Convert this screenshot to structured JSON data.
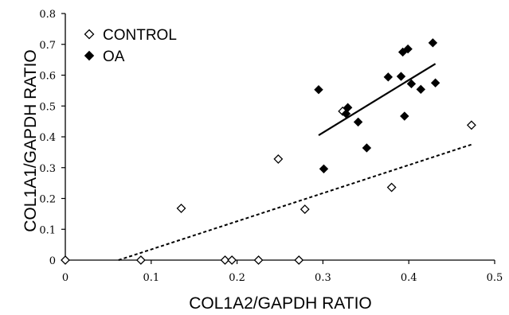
{
  "chart_data": {
    "type": "scatter",
    "xlabel": "COL1A2/GAPDH RATIO",
    "ylabel": "COL1A1/GAPDH RATIO",
    "xlim": [
      0,
      0.5
    ],
    "ylim": [
      0,
      0.8
    ],
    "x_ticks": [
      "0",
      "0.1",
      "0.2",
      "0.3",
      "0.4",
      "0.5"
    ],
    "y_ticks": [
      "0",
      "0.1",
      "0.2",
      "0.3",
      "0.4",
      "0.5",
      "0.6",
      "0.7",
      "0.8"
    ],
    "x_tick_values": [
      0,
      0.1,
      0.2,
      0.3,
      0.4,
      0.5
    ],
    "y_tick_values": [
      0,
      0.1,
      0.2,
      0.3,
      0.4,
      0.5,
      0.6,
      0.7,
      0.8
    ],
    "grid": false,
    "legend_position": "top-left",
    "series": [
      {
        "name": "CONTROL",
        "marker": "open-diamond",
        "color": "#000000",
        "points": [
          [
            0.0,
            0.0
          ],
          [
            0.088,
            0.0
          ],
          [
            0.186,
            0.0
          ],
          [
            0.194,
            0.0
          ],
          [
            0.225,
            0.0
          ],
          [
            0.272,
            0.0
          ],
          [
            0.135,
            0.168
          ],
          [
            0.248,
            0.328
          ],
          [
            0.279,
            0.165
          ],
          [
            0.323,
            0.483
          ],
          [
            0.38,
            0.236
          ],
          [
            0.473,
            0.438
          ]
        ],
        "trendline": {
          "style": "dashed",
          "from": [
            0.062,
            0.0
          ],
          "to": [
            0.473,
            0.375
          ]
        }
      },
      {
        "name": "OA",
        "marker": "filled-diamond",
        "color": "#000000",
        "points": [
          [
            0.295,
            0.553
          ],
          [
            0.301,
            0.296
          ],
          [
            0.327,
            0.475
          ],
          [
            0.329,
            0.495
          ],
          [
            0.341,
            0.448
          ],
          [
            0.351,
            0.364
          ],
          [
            0.376,
            0.594
          ],
          [
            0.391,
            0.596
          ],
          [
            0.393,
            0.675
          ],
          [
            0.395,
            0.467
          ],
          [
            0.399,
            0.685
          ],
          [
            0.403,
            0.572
          ],
          [
            0.414,
            0.554
          ],
          [
            0.428,
            0.705
          ],
          [
            0.431,
            0.575
          ]
        ],
        "trendline": {
          "style": "solid",
          "from": [
            0.295,
            0.405
          ],
          "to": [
            0.431,
            0.637
          ]
        }
      }
    ]
  }
}
